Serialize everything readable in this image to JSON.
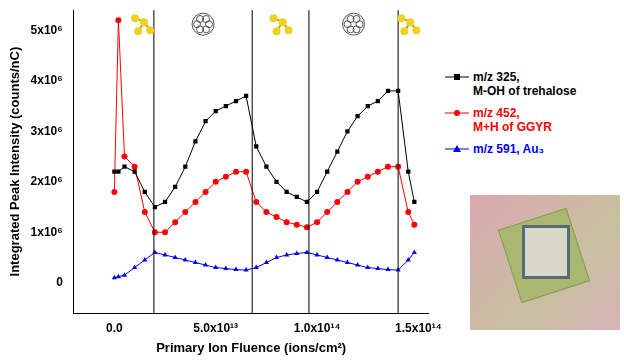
{
  "chart_data": {
    "type": "line",
    "x_label": "Primary Ion Fluence (ions/cm²)",
    "y_label": "Integrated Peak Intensity (counts/nC)",
    "x": [
      0,
      2000000000000.0,
      5000000000000.0,
      10000000000000.0,
      15000000000000.0,
      20000000000000.0,
      25000000000000.0,
      30000000000000.0,
      35000000000000.0,
      40000000000000.0,
      45000000000000.0,
      50000000000000.0,
      55000000000000.0,
      60000000000000.0,
      65000000000000.0,
      70000000000000.0,
      75000000000000.0,
      80000000000000.0,
      85000000000000.0,
      90000000000000.0,
      95000000000000.0,
      100000000000000.0,
      105000000000000.0,
      110000000000000.0,
      115000000000000.0,
      120000000000000.0,
      125000000000000.0,
      130000000000000.0,
      135000000000000.0,
      140000000000000.0,
      145000000000000.0,
      148000000000000.0
    ],
    "series": [
      {
        "name": "m/z 325,\nM-OH of trehalose",
        "color": "#000000",
        "marker": "square",
        "line_style": "solid",
        "values": [
          2200000.0,
          2200000.0,
          2300000.0,
          2200000.0,
          1800000.0,
          1500000.0,
          1600000.0,
          1900000.0,
          2300000.0,
          2800000.0,
          3200000.0,
          3400000.0,
          3500000.0,
          3600000.0,
          3700000.0,
          2700000.0,
          2300000.0,
          2000000.0,
          1800000.0,
          1700000.0,
          1600000.0,
          1800000.0,
          2200000.0,
          2600000.0,
          3000000.0,
          3300000.0,
          3500000.0,
          3600000.0,
          3800000.0,
          3800000.0,
          2200000.0,
          1600000.0
        ]
      },
      {
        "name": "m/z 452,\nM+H of GGYR",
        "color": "#ff0000",
        "marker": "circle",
        "line_style": "solid",
        "values": [
          1800000.0,
          5200000.0,
          2500000.0,
          2300000.0,
          1400000.0,
          1000000.0,
          1000000.0,
          1200000.0,
          1400000.0,
          1600000.0,
          1800000.0,
          2000000.0,
          2100000.0,
          2200000.0,
          2200000.0,
          1600000.0,
          1400000.0,
          1300000.0,
          1200000.0,
          1150000.0,
          1100000.0,
          1200000.0,
          1400000.0,
          1600000.0,
          1800000.0,
          2000000.0,
          2100000.0,
          2200000.0,
          2300000.0,
          2300000.0,
          1400000.0,
          1150000.0
        ]
      },
      {
        "name": "m/z 591, Au₃",
        "color": "#0000ff",
        "marker": "triangle",
        "line_style": "solid",
        "values": [
          100000.0,
          120000.0,
          150000.0,
          300000.0,
          450000.0,
          600000.0,
          550000.0,
          500000.0,
          450000.0,
          400000.0,
          350000.0,
          300000.0,
          280000.0,
          260000.0,
          250000.0,
          300000.0,
          400000.0,
          500000.0,
          550000.0,
          580000.0,
          600000.0,
          550000.0,
          500000.0,
          450000.0,
          400000.0,
          350000.0,
          300000.0,
          280000.0,
          260000.0,
          250000.0,
          450000.0,
          600000.0
        ]
      }
    ],
    "vertical_lines": [
      19500000000000.0,
      68000000000000.0,
      96000000000000.0,
      140000000000000.0
    ],
    "xlim": [
      -20000000000000.0,
      155000000000000.0
    ],
    "xticks": [
      {
        "value": 0,
        "label": "0.0"
      },
      {
        "value": 50000000000000.0,
        "label": "5.0x10¹³"
      },
      {
        "value": 100000000000000.0,
        "label": "1.0x10¹⁴"
      },
      {
        "value": 150000000000000.0,
        "label": "1.5x10¹⁴"
      }
    ],
    "ylim": [
      -600000,
      5400000
    ],
    "yticks": [
      0,
      {
        "value": 1000000,
        "label": "1x10⁶"
      },
      {
        "value": 2000000,
        "label": "2x10⁶"
      },
      {
        "value": 3000000,
        "label": "3x10⁶"
      },
      {
        "value": 4000000,
        "label": "4x10⁶"
      },
      {
        "value": 5000000,
        "label": "5x10⁶"
      }
    ],
    "grid": false,
    "legend": "right"
  }
}
